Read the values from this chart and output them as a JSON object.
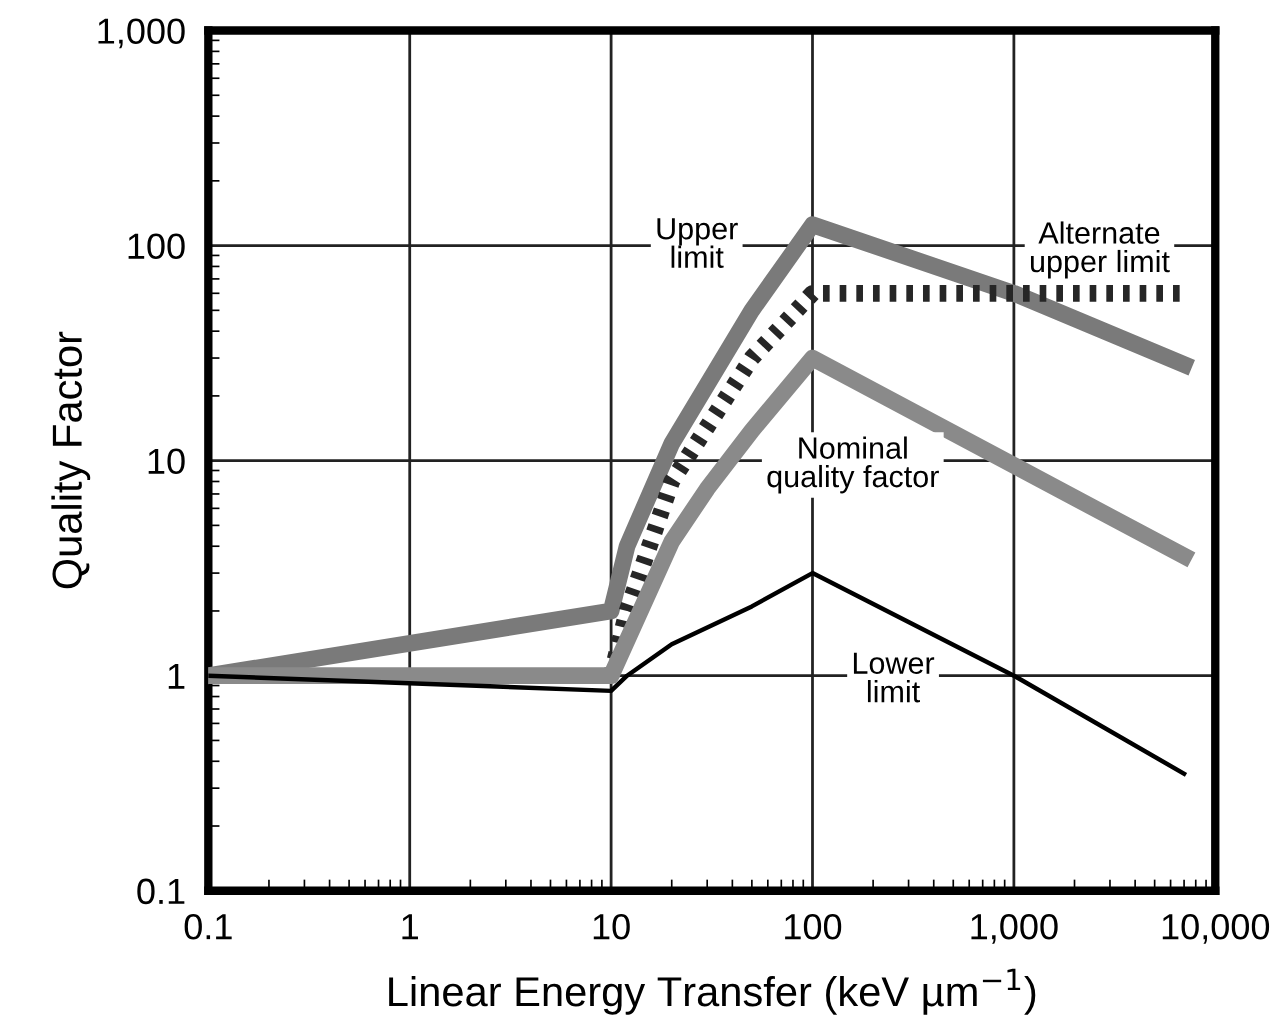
{
  "chart_data": {
    "type": "line",
    "xlabel": "Linear Energy Transfer (keV µm$^{−1}$)",
    "ylabel": "Quality Factor",
    "log": "xy",
    "grid": true,
    "xlim": [
      0.1,
      10000
    ],
    "ylim": [
      0.1,
      1000
    ],
    "xticks": [
      0.1,
      1,
      10,
      100,
      {
        "value": 1000,
        "label": "1,000"
      },
      {
        "value": 10000,
        "label": "10,000"
      }
    ],
    "yticks": [
      0.1,
      1,
      10,
      100,
      {
        "value": 1000,
        "label": "1,000"
      }
    ],
    "series": [
      {
        "color": "#7a7a7a",
        "line_style": "solid",
        "x": [
          0.1,
          10,
          12,
          20,
          50,
          100,
          1000,
          7000
        ],
        "values": [
          1,
          2,
          4,
          12,
          50,
          125,
          60,
          28
        ]
      },
      {
        "color": "#262626",
        "line_style": "dotted",
        "x": [
          10,
          12,
          20,
          50,
          100,
          7000
        ],
        "values": [
          1,
          2,
          8,
          30,
          60,
          60
        ]
      },
      {
        "color": "#8a8a8a",
        "line_style": "solid",
        "x": [
          0.1,
          10,
          20,
          30,
          50,
          100,
          1000,
          7000
        ],
        "values": [
          1,
          1,
          4.2,
          7.4,
          13.8,
          30,
          9.5,
          3.6
        ]
      },
      {
        "color": "#000000",
        "line_style": "solid",
        "x": [
          0.1,
          10,
          12,
          20,
          50,
          100,
          1000,
          7000
        ],
        "values": [
          1,
          0.85,
          1,
          1.4,
          2.1,
          3,
          1,
          0.35
        ]
      }
    ],
    "annotations": [
      "Upper\nlimit",
      "Alternate\nupper limit",
      "Nominal\nquality factor",
      "Lower\nlimit"
    ]
  }
}
